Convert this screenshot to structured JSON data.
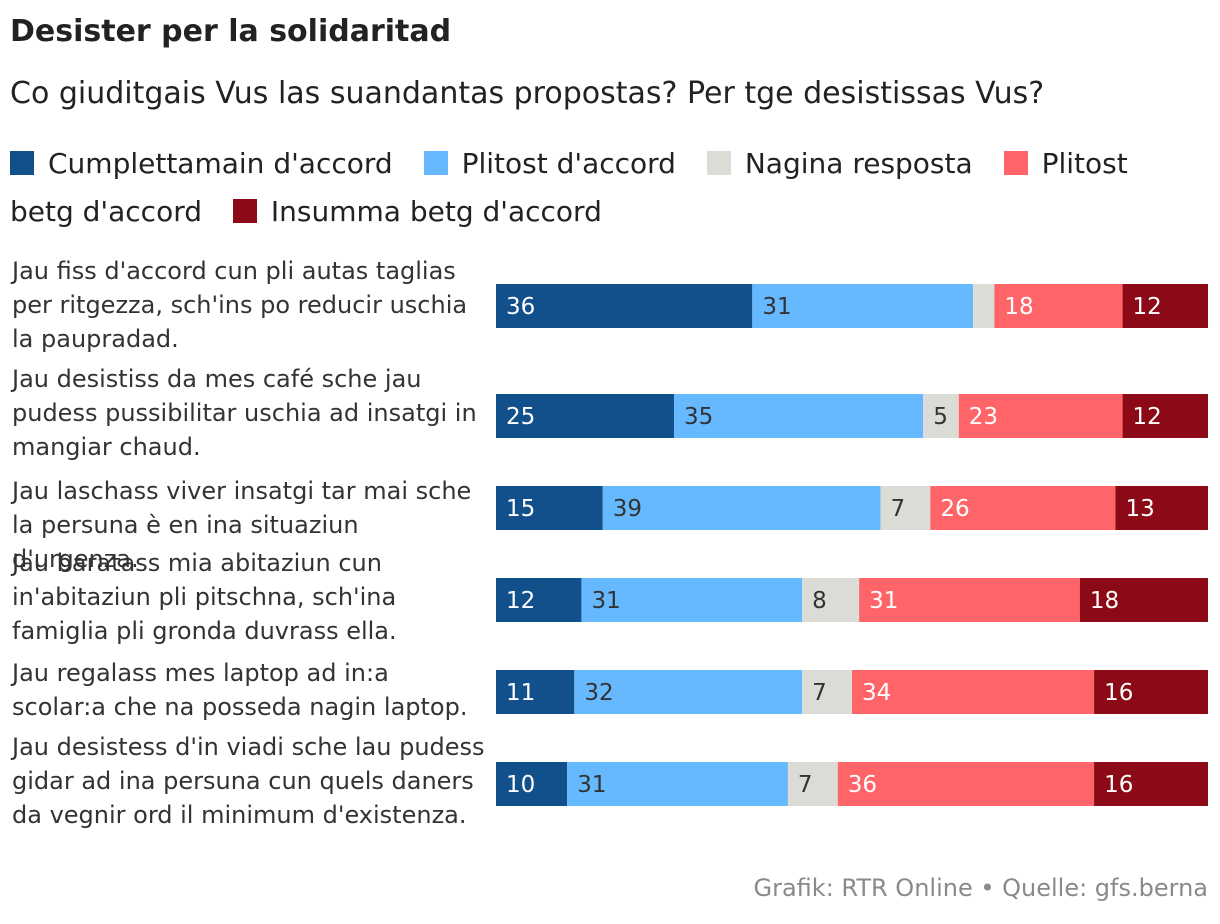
{
  "header": {
    "title": "Desister per la solidaritad",
    "subtitle": "Co giuditgais Vus las suandantas propostas? Per tge desistissas Vus?"
  },
  "footer": {
    "source": "Grafik: RTR Online • Quelle: gfs.berna"
  },
  "chart_data": {
    "type": "bar",
    "orientation": "horizontal",
    "stacked": true,
    "title": "Desister per la solidaritad",
    "subtitle": "Co giuditgais Vus las suandantas propostas? Per tge desistissas Vus?",
    "xlim": [
      0,
      100
    ],
    "grid": false,
    "legend_position": "top",
    "categories": [
      "Jau fiss d'accord cun pli autas taglias per ritgezza, sch'ins po reducir uschia la paupradad.",
      "Jau desistiss da mes café sche jau pudess pussibilitar uschia ad insatgi in mangiar chaud.",
      "Jau laschass viver insatgi tar mai sche la persuna è en ina situaziun d'urgenza.",
      "Jau baratass mia abitaziun cun in'abitaziun pli pitschna, sch'ina famiglia pli gronda duvrass ella.",
      "Jau regalass mes laptop ad in:a scolar:a che na posseda nagin laptop.",
      "Jau desistess d'in viadi sche lau pudess gidar ad ina persuna cun quels daners da vegnir ord il minimum d'existenza."
    ],
    "series": [
      {
        "name": "Cumplettamain d'accord",
        "color": "#11508a",
        "label_color": "#ffffff",
        "values": [
          36,
          25,
          15,
          12,
          11,
          10
        ]
      },
      {
        "name": "Plitost d'accord",
        "color": "#66b8ff",
        "label_color": "#333333",
        "values": [
          31,
          35,
          39,
          31,
          32,
          31
        ]
      },
      {
        "name": "Nagina resposta",
        "color": "#dcdcd6",
        "label_color": "#333333",
        "values": [
          3,
          5,
          7,
          8,
          7,
          7
        ]
      },
      {
        "name": "Plitost betg d'accord",
        "color": "#ff6468",
        "label_color": "#ffffff",
        "values": [
          18,
          23,
          26,
          31,
          34,
          36
        ]
      },
      {
        "name": "Insumma betg d'accord",
        "color": "#8c0a17",
        "label_color": "#ffffff",
        "values": [
          12,
          12,
          13,
          18,
          16,
          16
        ]
      }
    ],
    "data_labels": [
      [
        "36",
        "31",
        "",
        "18",
        "12"
      ],
      [
        "25",
        "35",
        "5",
        "23",
        "12"
      ],
      [
        "15",
        "39",
        "7",
        "26",
        "13"
      ],
      [
        "12",
        "31",
        "8",
        "31",
        "18"
      ],
      [
        "11",
        "32",
        "7",
        "34",
        "16"
      ],
      [
        "10",
        "31",
        "7",
        "36",
        "16"
      ]
    ]
  }
}
